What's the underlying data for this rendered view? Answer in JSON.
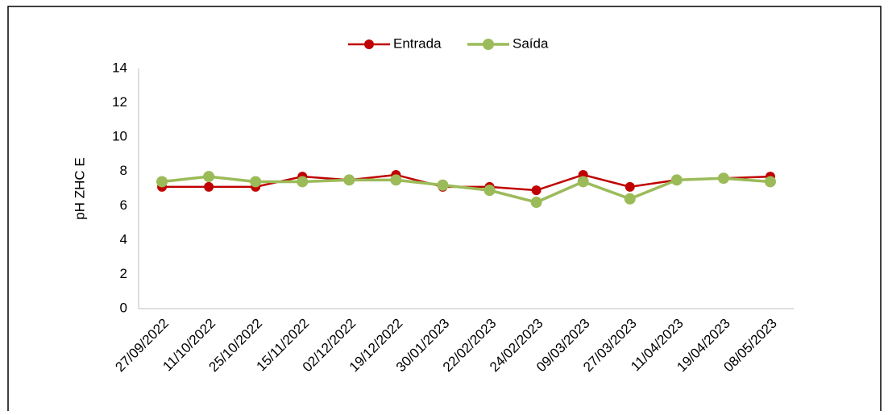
{
  "chart_data": {
    "type": "line",
    "categories": [
      "27/09/2022",
      "11/10/2022",
      "25/10/2022",
      "15/11/2022",
      "02/12/2022",
      "19/12/2022",
      "30/01/2023",
      "22/02/2023",
      "24/02/2023",
      "09/03/2023",
      "27/03/2023",
      "11/04/2023",
      "19/04/2023",
      "08/05/2023"
    ],
    "series": [
      {
        "name": "Entrada",
        "color": "#c00000",
        "values": [
          7.1,
          7.1,
          7.1,
          7.7,
          7.5,
          7.8,
          7.1,
          7.1,
          6.9,
          7.8,
          7.1,
          7.5,
          7.6,
          7.7
        ]
      },
      {
        "name": "Saída",
        "color": "#9bbb59",
        "values": [
          7.4,
          7.7,
          7.4,
          7.4,
          7.5,
          7.5,
          7.2,
          6.9,
          6.2,
          7.4,
          6.4,
          7.5,
          7.6,
          7.4
        ]
      }
    ],
    "y_label": "pH ZHC  E",
    "ylim": [
      0,
      14
    ],
    "yticks": [
      0,
      2,
      4,
      6,
      8,
      10,
      12,
      14
    ],
    "grid": false,
    "legend": "top"
  }
}
